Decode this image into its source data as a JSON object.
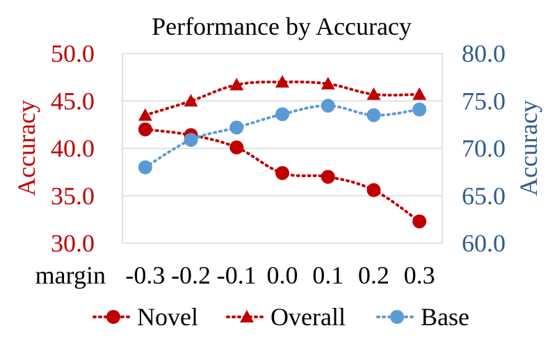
{
  "chart_data": {
    "type": "line",
    "title": "Performance by Accuracy",
    "xlabel": "margin",
    "categories": [
      "-0.3",
      "-0.2",
      "-0.1",
      "0.0",
      "0.1",
      "0.2",
      "0.3"
    ],
    "y_left": {
      "label": "Accuracy",
      "ylim": [
        30,
        50
      ],
      "ticks": [
        "30.0",
        "35.0",
        "40.0",
        "45.0",
        "50.0"
      ],
      "color": "#C00000"
    },
    "y_right": {
      "label": "Accuracy",
      "ylim": [
        60,
        80
      ],
      "ticks": [
        "60.0",
        "65.0",
        "70.0",
        "75.0",
        "80.0"
      ],
      "color": "#2F5B8C"
    },
    "grid": "horizontal",
    "legend_position": "bottom",
    "series": [
      {
        "name": "Novel",
        "axis": "left",
        "marker": "circle",
        "color": "#C00000",
        "values": [
          42.0,
          41.4,
          40.1,
          37.4,
          37.0,
          35.6,
          32.3
        ]
      },
      {
        "name": "Overall",
        "axis": "left",
        "marker": "triangle",
        "color": "#C00000",
        "values": [
          43.5,
          45.0,
          46.7,
          47.0,
          46.8,
          45.7,
          45.7
        ]
      },
      {
        "name": "Base",
        "axis": "right",
        "marker": "circle",
        "color": "#5B9BD5",
        "values": [
          68.0,
          70.9,
          72.2,
          73.6,
          74.5,
          73.5,
          74.1
        ]
      }
    ]
  }
}
